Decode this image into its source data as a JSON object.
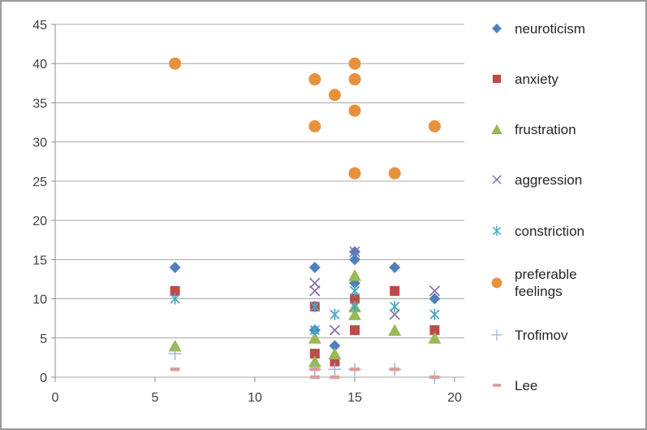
{
  "chart_data": {
    "type": "scatter",
    "title": "",
    "xlabel": "",
    "ylabel": "",
    "xlim": [
      0,
      20
    ],
    "ylim": [
      0,
      45
    ],
    "xticks": [
      0,
      5,
      10,
      15,
      20
    ],
    "yticks": [
      0,
      5,
      10,
      15,
      20,
      25,
      30,
      35,
      40,
      45
    ],
    "grid": "horizontal",
    "legend_position": "right",
    "colors": {
      "grid": "#a6a6a6",
      "axis": "#8c8c8c",
      "tick_text": "#3f3f3f"
    },
    "series": [
      {
        "name": "neuroticism",
        "marker": "diamond",
        "color": "#4f81bd",
        "points": [
          [
            6,
            14
          ],
          [
            13,
            14
          ],
          [
            13,
            6
          ],
          [
            14,
            4
          ],
          [
            15,
            16
          ],
          [
            15,
            15
          ],
          [
            15,
            12
          ],
          [
            17,
            14
          ],
          [
            19,
            10
          ]
        ]
      },
      {
        "name": "anxiety",
        "marker": "square",
        "color": "#be4b48",
        "points": [
          [
            6,
            11
          ],
          [
            13,
            9
          ],
          [
            13,
            3
          ],
          [
            14,
            2
          ],
          [
            15,
            10
          ],
          [
            15,
            6
          ],
          [
            17,
            11
          ],
          [
            19,
            6
          ]
        ]
      },
      {
        "name": "frustration",
        "marker": "triangle",
        "color": "#98b954",
        "points": [
          [
            6,
            4
          ],
          [
            13,
            5
          ],
          [
            13,
            2
          ],
          [
            14,
            3
          ],
          [
            15,
            13
          ],
          [
            15,
            9
          ],
          [
            15,
            8
          ],
          [
            17,
            6
          ],
          [
            19,
            5
          ]
        ]
      },
      {
        "name": "aggression",
        "marker": "x",
        "color": "#8470a8",
        "points": [
          [
            13,
            12
          ],
          [
            13,
            11
          ],
          [
            14,
            6
          ],
          [
            15,
            16
          ],
          [
            17,
            8
          ],
          [
            19,
            11
          ]
        ]
      },
      {
        "name": "constriction",
        "marker": "asterisk",
        "color": "#45a8c6",
        "points": [
          [
            6,
            10
          ],
          [
            13,
            9
          ],
          [
            13,
            6
          ],
          [
            14,
            8
          ],
          [
            15,
            11
          ],
          [
            15,
            9
          ],
          [
            17,
            9
          ],
          [
            19,
            8
          ]
        ]
      },
      {
        "name": "preferable feelings",
        "marker": "circle",
        "color": "#e8913c",
        "points": [
          [
            6,
            40
          ],
          [
            13,
            38
          ],
          [
            13,
            32
          ],
          [
            14,
            36
          ],
          [
            15,
            40
          ],
          [
            15,
            38
          ],
          [
            15,
            34
          ],
          [
            15,
            26
          ],
          [
            17,
            26
          ],
          [
            19,
            32
          ]
        ]
      },
      {
        "name": "Trofimov",
        "marker": "plus",
        "color": "#95b3d7",
        "points": [
          [
            6,
            3
          ],
          [
            13,
            1
          ],
          [
            14,
            1
          ],
          [
            15,
            1
          ],
          [
            17,
            1
          ],
          [
            19,
            0
          ]
        ]
      },
      {
        "name": "Lee",
        "marker": "dash",
        "color": "#de9b9b",
        "points": [
          [
            6,
            1
          ],
          [
            13,
            1
          ],
          [
            13,
            0
          ],
          [
            14,
            0
          ],
          [
            15,
            1
          ],
          [
            17,
            1
          ],
          [
            19,
            0
          ]
        ]
      }
    ]
  }
}
